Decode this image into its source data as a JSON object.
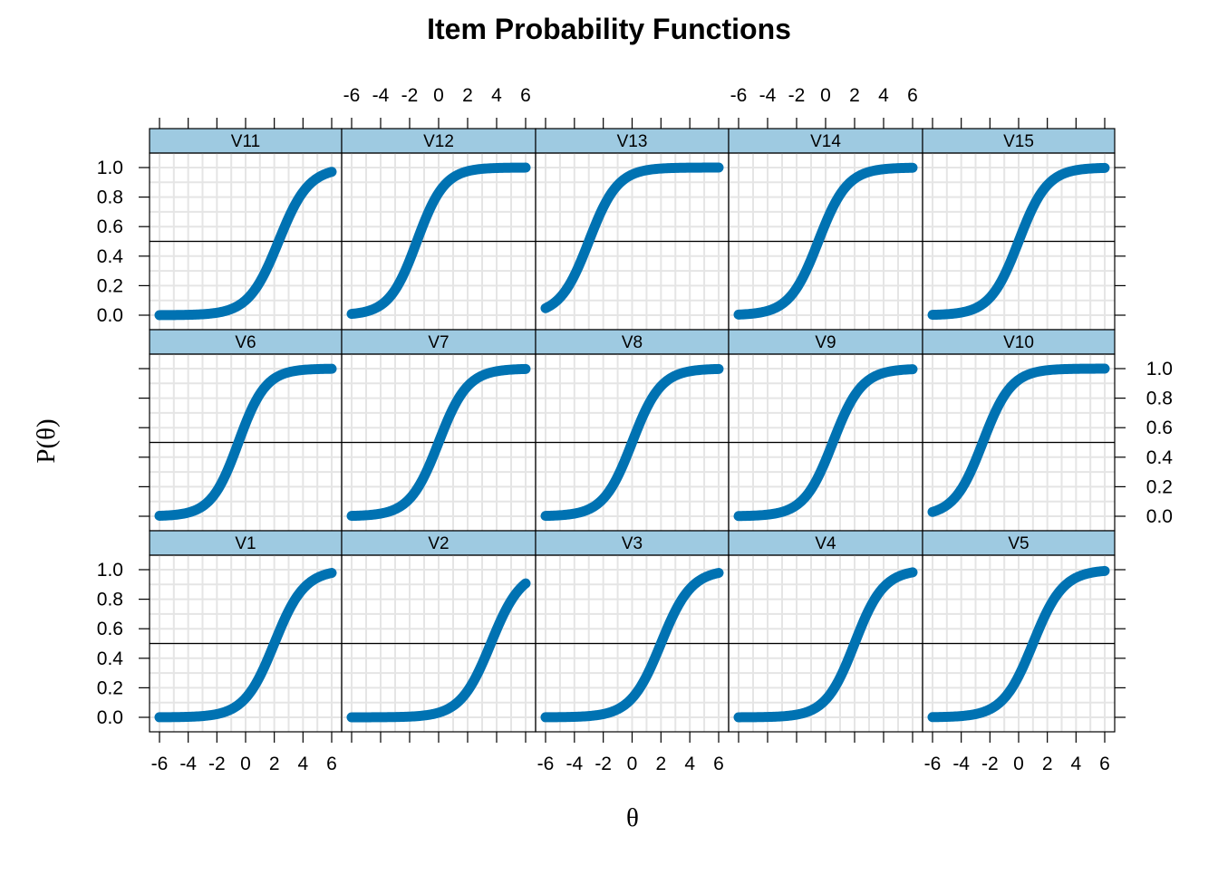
{
  "chart_data": {
    "type": "line",
    "title": "Item Probability Functions",
    "xlabel": "θ",
    "ylabel": "P(θ)",
    "xlim": [
      -6,
      6
    ],
    "ylim": [
      0,
      1
    ],
    "x_ticks": [
      -6,
      -4,
      -2,
      0,
      2,
      4,
      6
    ],
    "x_tick_labels": [
      "-6",
      "-4",
      "-2",
      "0",
      "2",
      "4",
      "6"
    ],
    "y_ticks": [
      0,
      0.2,
      0.4,
      0.6,
      0.8,
      1.0
    ],
    "y_tick_labels": [
      "0.0",
      "0.2",
      "0.4",
      "0.6",
      "0.8",
      "1.0"
    ],
    "reference_line_y": 0.5,
    "grid": true,
    "series_color": "#0072B2",
    "strip_color": "#9ECAE1",
    "grid_color": "#E5E5E5",
    "layout_rows": [
      [
        "V11",
        "V12",
        "V13",
        "V14",
        "V15"
      ],
      [
        "V6",
        "V7",
        "V8",
        "V9",
        "V10"
      ],
      [
        "V1",
        "V2",
        "V3",
        "V4",
        "V5"
      ]
    ],
    "panels": [
      {
        "name": "V1",
        "location": 2.0,
        "discrimination": 0.95
      },
      {
        "name": "V2",
        "location": 3.6,
        "discrimination": 0.95
      },
      {
        "name": "V3",
        "location": 2.0,
        "discrimination": 0.95
      },
      {
        "name": "V4",
        "location": 2.0,
        "discrimination": 1.0
      },
      {
        "name": "V5",
        "location": 1.0,
        "discrimination": 0.95
      },
      {
        "name": "V6",
        "location": -0.5,
        "discrimination": 1.05
      },
      {
        "name": "V7",
        "location": 0.0,
        "discrimination": 1.0
      },
      {
        "name": "V8",
        "location": 0.0,
        "discrimination": 1.0
      },
      {
        "name": "V9",
        "location": 0.5,
        "discrimination": 1.0
      },
      {
        "name": "V10",
        "location": -2.5,
        "discrimination": 1.0
      },
      {
        "name": "V11",
        "location": 2.3,
        "discrimination": 0.95
      },
      {
        "name": "V12",
        "location": -1.5,
        "discrimination": 1.05
      },
      {
        "name": "V13",
        "location": -3.0,
        "discrimination": 1.0
      },
      {
        "name": "V14",
        "location": -0.5,
        "discrimination": 1.0
      },
      {
        "name": "V15",
        "location": 0.0,
        "discrimination": 1.0
      }
    ]
  }
}
